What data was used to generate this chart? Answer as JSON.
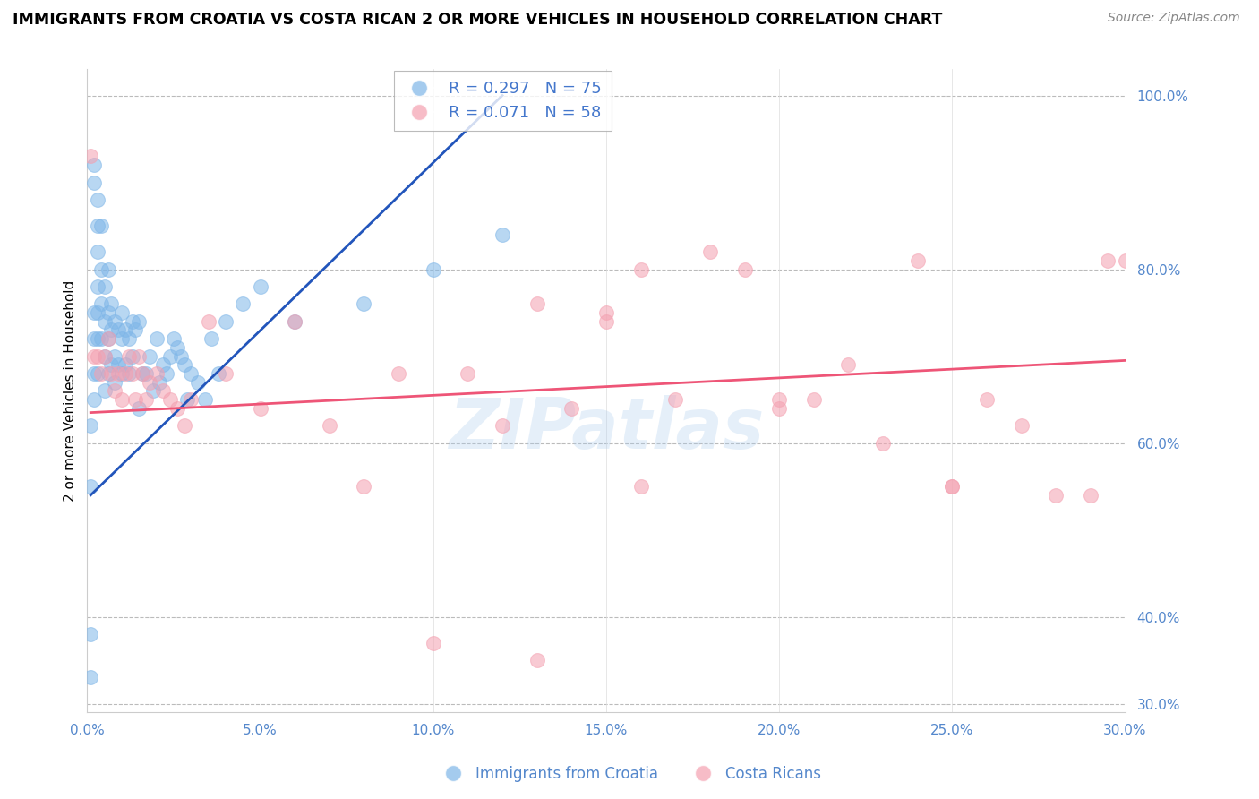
{
  "title": "IMMIGRANTS FROM CROATIA VS COSTA RICAN 2 OR MORE VEHICLES IN HOUSEHOLD CORRELATION CHART",
  "source": "Source: ZipAtlas.com",
  "ylabel": "2 or more Vehicles in Household",
  "xlim": [
    0.0,
    0.3
  ],
  "ylim": [
    0.29,
    1.03
  ],
  "right_yticks": [
    1.0,
    0.8,
    0.6,
    0.4,
    0.3
  ],
  "right_ytick_labels": [
    "100.0%",
    "80.0%",
    "60.0%",
    "40.0%",
    "30.0%"
  ],
  "xticks": [
    0.0,
    0.05,
    0.1,
    0.15,
    0.2,
    0.25,
    0.3
  ],
  "xtick_labels": [
    "0.0%",
    "5.0%",
    "10.0%",
    "15.0%",
    "20.0%",
    "25.0%",
    "30.0%"
  ],
  "blue_R": 0.297,
  "blue_N": 75,
  "pink_R": 0.071,
  "pink_N": 58,
  "blue_color": "#7EB6E8",
  "pink_color": "#F4A0B0",
  "blue_line_color": "#2255BB",
  "pink_line_color": "#EE5577",
  "legend_label_blue": "Immigrants from Croatia",
  "legend_label_pink": "Costa Ricans",
  "watermark": "ZIPatlas",
  "blue_x": [
    0.001,
    0.001,
    0.001,
    0.001,
    0.002,
    0.002,
    0.002,
    0.002,
    0.002,
    0.002,
    0.003,
    0.003,
    0.003,
    0.003,
    0.003,
    0.003,
    0.003,
    0.004,
    0.004,
    0.004,
    0.004,
    0.005,
    0.005,
    0.005,
    0.005,
    0.006,
    0.006,
    0.006,
    0.006,
    0.007,
    0.007,
    0.007,
    0.008,
    0.008,
    0.008,
    0.009,
    0.009,
    0.01,
    0.01,
    0.01,
    0.011,
    0.011,
    0.012,
    0.012,
    0.013,
    0.013,
    0.014,
    0.015,
    0.015,
    0.016,
    0.017,
    0.018,
    0.019,
    0.02,
    0.021,
    0.022,
    0.023,
    0.024,
    0.025,
    0.026,
    0.027,
    0.028,
    0.029,
    0.03,
    0.032,
    0.034,
    0.036,
    0.038,
    0.04,
    0.045,
    0.05,
    0.06,
    0.08,
    0.1,
    0.12
  ],
  "blue_y": [
    0.38,
    0.33,
    0.55,
    0.62,
    0.92,
    0.9,
    0.75,
    0.72,
    0.68,
    0.65,
    0.88,
    0.85,
    0.82,
    0.78,
    0.75,
    0.72,
    0.68,
    0.85,
    0.8,
    0.76,
    0.72,
    0.78,
    0.74,
    0.7,
    0.66,
    0.8,
    0.75,
    0.72,
    0.68,
    0.76,
    0.73,
    0.69,
    0.74,
    0.7,
    0.67,
    0.73,
    0.69,
    0.75,
    0.72,
    0.68,
    0.73,
    0.69,
    0.72,
    0.68,
    0.74,
    0.7,
    0.73,
    0.74,
    0.64,
    0.68,
    0.68,
    0.7,
    0.66,
    0.72,
    0.67,
    0.69,
    0.68,
    0.7,
    0.72,
    0.71,
    0.7,
    0.69,
    0.65,
    0.68,
    0.67,
    0.65,
    0.72,
    0.68,
    0.74,
    0.76,
    0.78,
    0.74,
    0.76,
    0.8,
    0.84
  ],
  "pink_x": [
    0.001,
    0.002,
    0.003,
    0.004,
    0.005,
    0.006,
    0.007,
    0.008,
    0.009,
    0.01,
    0.011,
    0.012,
    0.013,
    0.014,
    0.015,
    0.016,
    0.017,
    0.018,
    0.02,
    0.022,
    0.024,
    0.026,
    0.028,
    0.03,
    0.035,
    0.04,
    0.05,
    0.06,
    0.07,
    0.08,
    0.09,
    0.1,
    0.11,
    0.12,
    0.13,
    0.14,
    0.15,
    0.16,
    0.17,
    0.18,
    0.19,
    0.2,
    0.21,
    0.22,
    0.23,
    0.24,
    0.25,
    0.26,
    0.27,
    0.28,
    0.29,
    0.295,
    0.3,
    0.13,
    0.15,
    0.16,
    0.2,
    0.25
  ],
  "pink_y": [
    0.93,
    0.7,
    0.7,
    0.68,
    0.7,
    0.72,
    0.68,
    0.66,
    0.68,
    0.65,
    0.68,
    0.7,
    0.68,
    0.65,
    0.7,
    0.68,
    0.65,
    0.67,
    0.68,
    0.66,
    0.65,
    0.64,
    0.62,
    0.65,
    0.74,
    0.68,
    0.64,
    0.74,
    0.62,
    0.55,
    0.68,
    0.37,
    0.68,
    0.62,
    0.35,
    0.64,
    0.75,
    0.55,
    0.65,
    0.82,
    0.8,
    0.64,
    0.65,
    0.69,
    0.6,
    0.81,
    0.55,
    0.65,
    0.62,
    0.54,
    0.54,
    0.81,
    0.81,
    0.76,
    0.74,
    0.8,
    0.65,
    0.55
  ]
}
